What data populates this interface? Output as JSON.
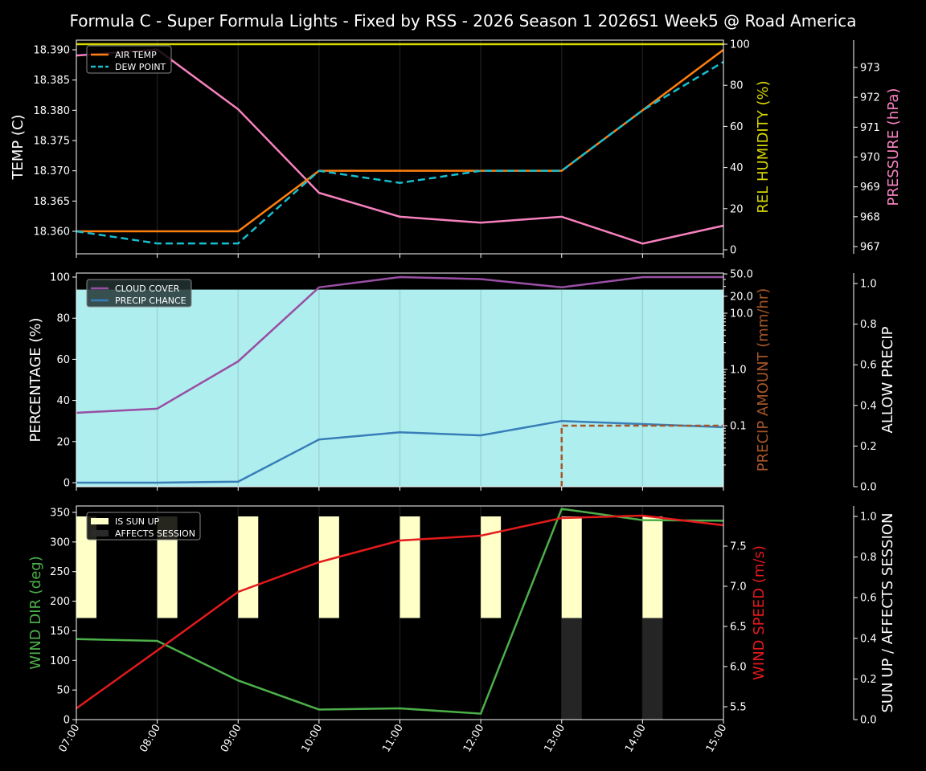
{
  "title": "Formula C - Super Formula Lights - Fixed by RSS - 2026 Season 1 2026S1 Week5 @ Road America",
  "colors": {
    "background": "#000000",
    "air_temp": "#ff7f0e",
    "dew_point": "#17becf",
    "humidity": "#d6d600",
    "pressure": "#f781bf",
    "cloud_cover": "#984ea3",
    "precip_chance": "#377eb8",
    "precip_amount": "#a65628",
    "allow_precip_fill": "#afeeee",
    "wind_dir": "#4daf4a",
    "wind_speed": "#e41a1c",
    "sun_up": "#ffffc8",
    "affects_session": "#252525"
  },
  "chart_data": [
    {
      "type": "line",
      "title": "Temperature / Humidity / Pressure",
      "x": [
        "07:00",
        "08:00",
        "09:00",
        "10:00",
        "11:00",
        "12:00",
        "13:00",
        "14:00",
        "15:00"
      ],
      "series": [
        {
          "name": "AIR TEMP",
          "axis": "TEMP (C)",
          "style": "solid",
          "values": [
            18.36,
            18.36,
            18.36,
            18.37,
            18.37,
            18.37,
            18.37,
            18.38,
            18.39
          ]
        },
        {
          "name": "DEW POINT",
          "axis": "TEMP (C)",
          "style": "dashed",
          "values": [
            18.36,
            18.358,
            18.358,
            18.37,
            18.368,
            18.37,
            18.37,
            18.38,
            18.388
          ]
        },
        {
          "name": "REL HUMIDITY",
          "axis": "REL HUMIDITY (%)",
          "style": "solid",
          "values": [
            100,
            100,
            100,
            100,
            100,
            100,
            100,
            100,
            100
          ]
        },
        {
          "name": "PRESSURE",
          "axis": "PRESSURE (hPa)",
          "style": "solid",
          "values": [
            973.4,
            973.6,
            971.6,
            968.8,
            968.0,
            967.8,
            968.0,
            967.1,
            967.7
          ]
        }
      ],
      "ylabel": "TEMP (C)",
      "ylim": [
        18.3565,
        18.3915
      ],
      "yticks": [
        "18.360",
        "18.365",
        "18.370",
        "18.375",
        "18.380",
        "18.385",
        "18.390"
      ],
      "y2label": "REL HUMIDITY (%)",
      "y2ticks": [
        "0",
        "20",
        "40",
        "60",
        "80",
        "100"
      ],
      "y3label": "PRESSURE (hPa)",
      "y3ticks": [
        "967",
        "968",
        "969",
        "970",
        "971",
        "972",
        "973"
      ],
      "legend": [
        "AIR TEMP",
        "DEW POINT"
      ],
      "legend_position": "upper left",
      "grid": "vertical"
    },
    {
      "type": "line",
      "title": "Clouds / Precipitation",
      "x": [
        "07:00",
        "08:00",
        "09:00",
        "10:00",
        "11:00",
        "12:00",
        "13:00",
        "14:00",
        "15:00"
      ],
      "series": [
        {
          "name": "CLOUD COVER",
          "axis": "PERCENTAGE (%)",
          "values": [
            34,
            36,
            59,
            95,
            100,
            99,
            95,
            100,
            100
          ]
        },
        {
          "name": "PRECIP CHANCE",
          "axis": "PERCENTAGE (%)",
          "values": [
            0,
            0,
            0.5,
            21,
            24.5,
            23,
            30,
            28.5,
            27
          ]
        },
        {
          "name": "PRECIP AMOUNT",
          "axis": "PRECIP AMOUNT (mm/hr)",
          "style": "dashed-step",
          "values": [
            0,
            0,
            0,
            0,
            0,
            0,
            0.1,
            0.1,
            0.1
          ]
        },
        {
          "name": "ALLOW PRECIP",
          "axis": "ALLOW PRECIP",
          "style": "fill",
          "values": [
            0.97,
            0.97,
            0.97,
            0.97,
            0.97,
            0.97,
            0.97,
            0.97,
            0.97
          ]
        }
      ],
      "ylabel": "PERCENTAGE (%)",
      "ylim": [
        -1,
        101
      ],
      "yticks": [
        "0",
        "20",
        "40",
        "60",
        "80",
        "100"
      ],
      "y2label": "PRECIP AMOUNT (mm/hr)",
      "y2scale": "log",
      "y2ticks": [
        "0.1",
        "1.0",
        "10.0",
        "20.0",
        "50.0"
      ],
      "y3label": "ALLOW PRECIP",
      "y3ticks": [
        "0.0",
        "0.2",
        "0.4",
        "0.6",
        "0.8",
        "1.0"
      ],
      "legend": [
        "CLOUD COVER",
        "PRECIP CHANCE"
      ],
      "legend_position": "upper left"
    },
    {
      "type": "line",
      "title": "Wind / Sun",
      "x": [
        "07:00",
        "08:00",
        "09:00",
        "10:00",
        "11:00",
        "12:00",
        "13:00",
        "14:00",
        "15:00"
      ],
      "series": [
        {
          "name": "WIND DIR",
          "axis": "WIND DIR (deg)",
          "values": [
            136,
            133,
            66,
            17,
            19,
            10,
            356,
            337,
            336
          ]
        },
        {
          "name": "WIND SPEED",
          "axis": "WIND SPEED (m/s)",
          "values": [
            5.48,
            6.2,
            6.93,
            7.3,
            7.57,
            7.63,
            7.85,
            7.88,
            7.76
          ]
        },
        {
          "name": "IS SUN UP",
          "type": "bar",
          "axis": "SUN UP / AFFECTS SESSION",
          "values": [
            1,
            1,
            1,
            1,
            1,
            1,
            1,
            1,
            0
          ]
        },
        {
          "name": "AFFECTS SESSION",
          "type": "bar",
          "axis": "SUN UP / AFFECTS SESSION",
          "values": [
            0,
            0,
            0,
            0,
            0,
            0,
            1,
            1,
            0
          ]
        }
      ],
      "ylabel": "WIND DIR (deg)",
      "ylim": [
        0,
        360
      ],
      "yticks": [
        "0",
        "50",
        "100",
        "150",
        "200",
        "250",
        "300",
        "350"
      ],
      "y2label": "WIND SPEED (m/s)",
      "y2ticks": [
        "5.5",
        "6.0",
        "6.5",
        "7.0",
        "7.5"
      ],
      "y3label": "SUN UP / AFFECTS SESSION",
      "y3ticks": [
        "0.0",
        "0.2",
        "0.4",
        "0.6",
        "0.8",
        "1.0"
      ],
      "legend": [
        "IS SUN UP",
        "AFFECTS SESSION"
      ],
      "legend_position": "upper left",
      "xlabel_rotation": 60
    }
  ]
}
